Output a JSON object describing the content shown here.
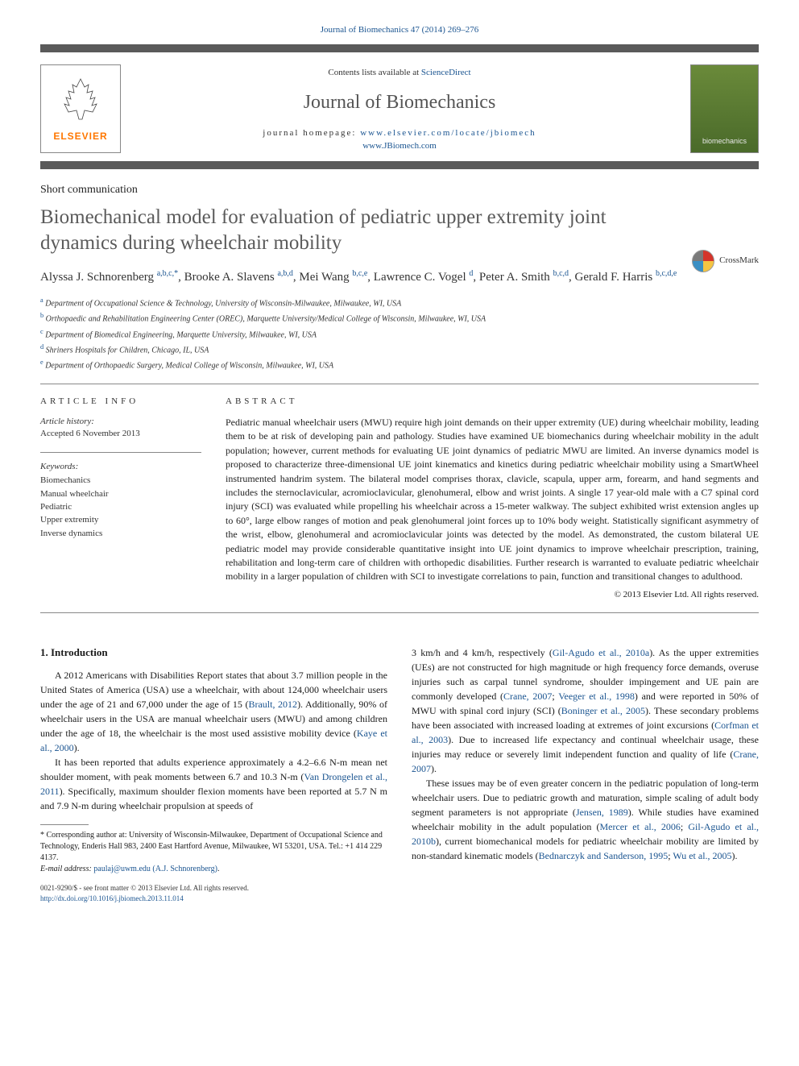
{
  "top_link": "Journal of Biomechanics 47 (2014) 269–276",
  "banner": {
    "contents_prefix": "Contents lists available at ",
    "contents_link": "ScienceDirect",
    "journal_name": "Journal of Biomechanics",
    "homepage_prefix": "journal homepage: ",
    "homepage_url": "www.elsevier.com/locate/jbiomech",
    "homepage_sub": "www.JBiomech.com",
    "elsevier_label": "ELSEVIER",
    "biomech_label": "biomechanics"
  },
  "crossmark": "CrossMark",
  "article_type": "Short communication",
  "title": "Biomechanical model for evaluation of pediatric upper extremity joint dynamics during wheelchair mobility",
  "authors_html": "Alyssa J. Schnorenberg <sup>a,b,c,*</sup>, Brooke A. Slavens <sup>a,b,d</sup>, Mei Wang <sup>b,c,e</sup>, Lawrence C. Vogel <sup>d</sup>, Peter A. Smith <sup>b,c,d</sup>, Gerald F. Harris <sup>b,c,d,e</sup>",
  "affiliations": [
    {
      "sup": "a",
      "text": " Department of Occupational Science & Technology, University of Wisconsin-Milwaukee, Milwaukee, WI, USA"
    },
    {
      "sup": "b",
      "text": " Orthopaedic and Rehabilitation Engineering Center (OREC), Marquette University/Medical College of Wisconsin, Milwaukee, WI, USA"
    },
    {
      "sup": "c",
      "text": " Department of Biomedical Engineering, Marquette University, Milwaukee, WI, USA"
    },
    {
      "sup": "d",
      "text": " Shriners Hospitals for Children, Chicago, IL, USA"
    },
    {
      "sup": "e",
      "text": " Department of Orthopaedic Surgery, Medical College of Wisconsin, Milwaukee, WI, USA"
    }
  ],
  "info": {
    "article_info_head": "ARTICLE INFO",
    "history_label": "Article history:",
    "accepted": "Accepted 6 November 2013",
    "keywords_label": "Keywords:",
    "keywords": [
      "Biomechanics",
      "Manual wheelchair",
      "Pediatric",
      "Upper extremity",
      "Inverse dynamics"
    ]
  },
  "abstract": {
    "head": "ABSTRACT",
    "text": "Pediatric manual wheelchair users (MWU) require high joint demands on their upper extremity (UE) during wheelchair mobility, leading them to be at risk of developing pain and pathology. Studies have examined UE biomechanics during wheelchair mobility in the adult population; however, current methods for evaluating UE joint dynamics of pediatric MWU are limited. An inverse dynamics model is proposed to characterize three-dimensional UE joint kinematics and kinetics during pediatric wheelchair mobility using a SmartWheel instrumented handrim system. The bilateral model comprises thorax, clavicle, scapula, upper arm, forearm, and hand segments and includes the sternoclavicular, acromioclavicular, glenohumeral, elbow and wrist joints. A single 17 year-old male with a C7 spinal cord injury (SCI) was evaluated while propelling his wheelchair across a 15-meter walkway. The subject exhibited wrist extension angles up to 60°, large elbow ranges of motion and peak glenohumeral joint forces up to 10% body weight. Statistically significant asymmetry of the wrist, elbow, glenohumeral and acromioclavicular joints was detected by the model. As demonstrated, the custom bilateral UE pediatric model may provide considerable quantitative insight into UE joint dynamics to improve wheelchair prescription, training, rehabilitation and long-term care of children with orthopedic disabilities. Further research is warranted to evaluate pediatric wheelchair mobility in a larger population of children with SCI to investigate correlations to pain, function and transitional changes to adulthood.",
    "copyright": "© 2013 Elsevier Ltd. All rights reserved."
  },
  "intro": {
    "heading": "1.  Introduction",
    "p1_a": "A 2012 Americans with Disabilities Report states that about 3.7 million people in the United States of America (USA) use a wheelchair, with about 124,000 wheelchair users under the age of 21 and 67,000 under the age of 15 (",
    "p1_ref1": "Brault, 2012",
    "p1_b": "). Additionally, 90% of wheelchair users in the USA are manual wheelchair users (MWU) and among children under the age of 18, the wheelchair is the most used assistive mobility device (",
    "p1_ref2": "Kaye et al., 2000",
    "p1_c": ").",
    "p2_a": "It has been reported that adults experience approximately a 4.2–6.6 N-m mean net shoulder moment, with peak moments between 6.7 and 10.3 N-m (",
    "p2_ref1": "Van Drongelen et al., 2011",
    "p2_b": "). Specifically, maximum shoulder flexion moments have been reported at 5.7 N m and 7.9 N-m during wheelchair propulsion at speeds of",
    "p3_a": "3 km/h and 4 km/h, respectively (",
    "p3_ref1": "Gil-Agudo et al., 2010a",
    "p3_b": "). As the upper extremities (UEs) are not constructed for high magnitude or high frequency force demands, overuse injuries such as carpal tunnel syndrome, shoulder impingement and UE pain are commonly developed (",
    "p3_ref2": "Crane, 2007",
    "p3_c": "; ",
    "p3_ref3": "Veeger et al., 1998",
    "p3_d": ") and were reported in 50% of MWU with spinal cord injury (SCI) (",
    "p3_ref4": "Boninger et al., 2005",
    "p3_e": "). These secondary problems have been associated with increased loading at extremes of joint excursions (",
    "p3_ref5": "Corfman et al., 2003",
    "p3_f": "). Due to increased life expectancy and continual wheelchair usage, these injuries may reduce or severely limit independent function and quality of life (",
    "p3_ref6": "Crane, 2007",
    "p3_g": ").",
    "p4_a": "These issues may be of even greater concern in the pediatric population of long-term wheelchair users. Due to pediatric growth and maturation, simple scaling of adult body segment parameters is not appropriate (",
    "p4_ref1": "Jensen, 1989",
    "p4_b": "). While studies have examined wheelchair mobility in the adult population (",
    "p4_ref2": "Mercer et al., 2006",
    "p4_c": "; ",
    "p4_ref3": "Gil-Agudo et al., 2010b",
    "p4_d": "), current biomechanical models for pediatric wheelchair mobility are limited by non-standard kinematic models (",
    "p4_ref4": "Bednarczyk and Sanderson, 1995",
    "p4_e": "; ",
    "p4_ref5": "Wu et al., 2005",
    "p4_f": ")."
  },
  "footnote": {
    "corr_a": "* Corresponding author at: University of Wisconsin-Milwaukee, Department of Occupational Science and Technology, Enderis Hall 983, 2400 East Hartford Avenue, Milwaukee, WI 53201, USA. Tel.: +1 414 229 4137.",
    "email_label": "E-mail address: ",
    "email": "paulaj@uwm.edu (A.J. Schnorenberg)",
    "copyright_a": "0021-9290/$ - see front matter © 2013 Elsevier Ltd. All rights reserved.",
    "doi": "http://dx.doi.org/10.1016/j.jbiomech.2013.11.014"
  },
  "colors": {
    "link": "#1a5490",
    "gray_bar": "#5a5a5a",
    "title_gray": "#5a5a5a",
    "elsevier_orange": "#ff7700"
  },
  "typography": {
    "title_fontsize": 25,
    "journal_name_fontsize": 24,
    "authors_fontsize": 15,
    "body_fontsize": 12,
    "abstract_fontsize": 12,
    "affil_fontsize": 10,
    "footnote_fontsize": 10
  }
}
